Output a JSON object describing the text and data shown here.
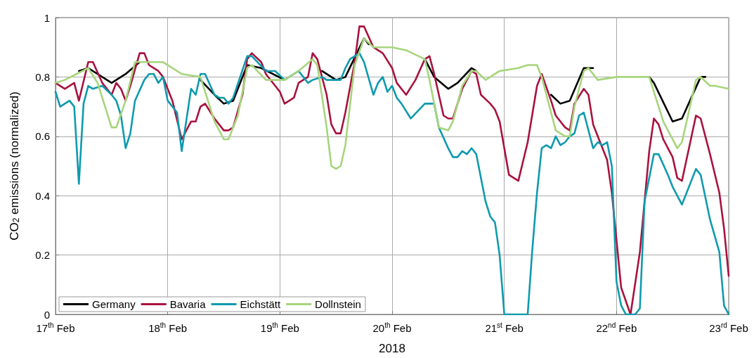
{
  "chart_data": {
    "type": "line",
    "xlabel": "2018",
    "ylabel": "CO$_{2}$ emissions (normalized)",
    "xlim": [
      "2018-02-17",
      "2018-02-23"
    ],
    "xticks": [
      {
        "value": "2018-02-17",
        "label": "17$^{th}$ Feb"
      },
      {
        "value": "2018-02-18",
        "label": "18$^{th}$ Feb"
      },
      {
        "value": "2018-02-19",
        "label": "19$^{th}$ Feb"
      },
      {
        "value": "2018-02-20",
        "label": "20$^{th}$ Feb"
      },
      {
        "value": "2018-02-21",
        "label": "21$^{st}$ Feb"
      },
      {
        "value": "2018-02-22",
        "label": "22$^{nd}$ Feb"
      },
      {
        "value": "2018-02-23",
        "label": "23$^{rd}$ Feb"
      }
    ],
    "ylim": [
      0,
      1
    ],
    "yticks": [
      0,
      0.2,
      0.4,
      0.6,
      0.8,
      1
    ],
    "grid": true,
    "legend": "bottom left",
    "marker": "none",
    "line_style": "solid",
    "series": [
      {
        "name": "Germany",
        "color": "#000000",
        "x": [
          "2018-02-17T05:00",
          "2018-02-17T07:00",
          "2018-02-17T12:00",
          "2018-02-17T15:00",
          "2018-02-17T18:00",
          "2018-02-18T00:00",
          "2018-02-18T07:00",
          "2018-02-18T10:00",
          "2018-02-18T12:00",
          "2018-02-18T14:00",
          "2018-02-18T17:00",
          "2018-02-18T20:00",
          "2018-02-19T01:00",
          "2018-02-19T04:00",
          "2018-02-19T07:00",
          "2018-02-19T09:00",
          "2018-02-19T12:00",
          "2018-02-19T14:00",
          "2018-02-19T18:00",
          "2018-02-19T19:00",
          "2018-02-20T00:00",
          "2018-02-20T07:00",
          "2018-02-20T09:00",
          "2018-02-20T12:00",
          "2018-02-20T14:00",
          "2018-02-20T17:00",
          "2018-02-20T18:00",
          "2018-02-21T00:00",
          "2018-02-21T08:00",
          "2018-02-21T10:00",
          "2018-02-21T12:00",
          "2018-02-21T14:00",
          "2018-02-21T17:00",
          "2018-02-21T19:00",
          "2018-02-22T00:00",
          "2018-02-22T07:00",
          "2018-02-22T08:00",
          "2018-02-22T12:00",
          "2018-02-22T14:00",
          "2018-02-22T18:00",
          "2018-02-22T19:00"
        ],
        "values": [
          0.82,
          0.83,
          0.78,
          0.81,
          0.85,
          null,
          0.79,
          0.74,
          0.71,
          0.72,
          0.84,
          0.83,
          0.79,
          null,
          null,
          0.82,
          0.79,
          0.8,
          0.93,
          0.91,
          null,
          0.86,
          0.8,
          0.76,
          0.78,
          0.83,
          0.82,
          null,
          null,
          0.74,
          0.71,
          0.72,
          0.83,
          0.83,
          null,
          0.8,
          0.78,
          0.65,
          0.66,
          0.8,
          0.8
        ]
      },
      {
        "name": "Bavaria",
        "color": "#a8123e",
        "x": [
          "2018-02-17T00:00",
          "2018-02-17T02:00",
          "2018-02-17T04:00",
          "2018-02-17T05:00",
          "2018-02-17T07:00",
          "2018-02-17T08:00",
          "2018-02-17T10:00",
          "2018-02-17T12:00",
          "2018-02-17T13:00",
          "2018-02-17T14:00",
          "2018-02-17T15:00",
          "2018-02-17T16:00",
          "2018-02-17T18:00",
          "2018-02-17T19:00",
          "2018-02-17T20:00",
          "2018-02-17T22:00",
          "2018-02-17T23:00",
          "2018-02-18T01:00",
          "2018-02-18T03:00",
          "2018-02-18T05:00",
          "2018-02-18T06:00",
          "2018-02-18T07:00",
          "2018-02-18T08:00",
          "2018-02-18T10:00",
          "2018-02-18T12:00",
          "2018-02-18T13:00",
          "2018-02-18T14:00",
          "2018-02-18T16:00",
          "2018-02-18T17:00",
          "2018-02-18T18:00",
          "2018-02-18T20:00",
          "2018-02-18T21:00",
          "2018-02-19T00:00",
          "2018-02-19T01:00",
          "2018-02-19T03:00",
          "2018-02-19T04:00",
          "2018-02-19T06:00",
          "2018-02-19T07:00",
          "2018-02-19T08:00",
          "2018-02-19T10:00",
          "2018-02-19T11:00",
          "2018-02-19T12:00",
          "2018-02-19T13:00",
          "2018-02-19T14:00",
          "2018-02-19T16:00",
          "2018-02-19T17:00",
          "2018-02-19T18:00",
          "2018-02-19T20:00",
          "2018-02-19T22:00",
          "2018-02-20T00:00",
          "2018-02-20T01:00",
          "2018-02-20T03:00",
          "2018-02-20T05:00",
          "2018-02-20T07:00",
          "2018-02-20T08:00",
          "2018-02-20T09:00",
          "2018-02-20T11:00",
          "2018-02-20T12:00",
          "2018-02-20T13:00",
          "2018-02-20T15:00",
          "2018-02-20T17:00",
          "2018-02-20T18:00",
          "2018-02-20T19:00",
          "2018-02-20T21:00",
          "2018-02-20T22:00",
          "2018-02-20T23:00",
          "2018-02-21T00:00",
          "2018-02-21T01:00",
          "2018-02-21T03:00",
          "2018-02-21T05:00",
          "2018-02-21T07:00",
          "2018-02-21T08:00",
          "2018-02-21T10:00",
          "2018-02-21T11:00",
          "2018-02-21T13:00",
          "2018-02-21T14:00",
          "2018-02-21T15:00",
          "2018-02-21T17:00",
          "2018-02-21T18:00",
          "2018-02-21T19:00",
          "2018-02-21T22:00",
          "2018-02-21T23:00",
          "2018-02-22T01:00",
          "2018-02-22T03:00",
          "2018-02-22T05:00",
          "2018-02-22T07:00",
          "2018-02-22T08:00",
          "2018-02-22T09:00",
          "2018-02-22T10:00",
          "2018-02-22T12:00",
          "2018-02-22T13:00",
          "2018-02-22T14:00",
          "2018-02-22T17:00",
          "2018-02-22T18:00",
          "2018-02-22T20:00",
          "2018-02-22T22:00",
          "2018-02-22T23:00",
          "2018-02-23T00:00"
        ],
        "values": [
          0.78,
          0.76,
          0.78,
          0.72,
          0.85,
          0.85,
          0.78,
          0.74,
          0.78,
          0.76,
          0.72,
          0.77,
          0.88,
          0.88,
          0.84,
          0.82,
          0.8,
          0.72,
          0.59,
          0.65,
          0.65,
          0.7,
          0.71,
          0.66,
          0.62,
          0.62,
          0.63,
          0.74,
          0.86,
          0.88,
          0.85,
          0.81,
          0.75,
          0.71,
          0.73,
          0.78,
          0.8,
          0.88,
          0.86,
          0.74,
          0.64,
          0.61,
          0.61,
          0.68,
          0.85,
          0.97,
          0.97,
          0.9,
          0.88,
          0.83,
          0.78,
          0.74,
          0.79,
          0.86,
          0.87,
          0.81,
          0.67,
          0.66,
          0.66,
          0.76,
          0.82,
          0.81,
          0.74,
          0.71,
          0.69,
          0.65,
          0.56,
          0.47,
          0.45,
          0.58,
          0.77,
          0.81,
          0.72,
          0.67,
          0.63,
          0.62,
          0.71,
          0.76,
          0.74,
          0.64,
          0.52,
          0.41,
          0.09,
          0,
          0.21,
          0.55,
          0.66,
          0.64,
          0.59,
          0.53,
          0.46,
          0.45,
          0.67,
          0.66,
          0.54,
          0.41,
          0.29,
          0.13
        ]
      },
      {
        "name": "Eichstätt",
        "color": "#0f9aae",
        "x": [
          "2018-02-17T00:00",
          "2018-02-17T01:00",
          "2018-02-17T03:00",
          "2018-02-17T04:00",
          "2018-02-17T05:00",
          "2018-02-17T06:00",
          "2018-02-17T07:00",
          "2018-02-17T08:00",
          "2018-02-17T10:00",
          "2018-02-17T12:00",
          "2018-02-17T13:00",
          "2018-02-17T14:00",
          "2018-02-17T15:00",
          "2018-02-17T16:00",
          "2018-02-17T17:00",
          "2018-02-17T19:00",
          "2018-02-17T20:00",
          "2018-02-17T21:00",
          "2018-02-17T22:00",
          "2018-02-17T23:00",
          "2018-02-18T00:00",
          "2018-02-18T02:00",
          "2018-02-18T03:00",
          "2018-02-18T05:00",
          "2018-02-18T06:00",
          "2018-02-18T07:00",
          "2018-02-18T08:00",
          "2018-02-18T10:00",
          "2018-02-18T11:00",
          "2018-02-18T12:00",
          "2018-02-18T13:00",
          "2018-02-18T14:00",
          "2018-02-18T17:00",
          "2018-02-18T18:00",
          "2018-02-18T21:00",
          "2018-02-18T23:00",
          "2018-02-19T01:00",
          "2018-02-19T03:00",
          "2018-02-19T04:00",
          "2018-02-19T06:00",
          "2018-02-19T07:00",
          "2018-02-19T09:00",
          "2018-02-19T10:00",
          "2018-02-19T12:00",
          "2018-02-19T13:00",
          "2018-02-19T14:00",
          "2018-02-19T15:00",
          "2018-02-19T17:00",
          "2018-02-19T18:00",
          "2018-02-19T20:00",
          "2018-02-19T21:00",
          "2018-02-19T22:00",
          "2018-02-19T23:00",
          "2018-02-20T00:00",
          "2018-02-20T01:00",
          "2018-02-20T02:00",
          "2018-02-20T04:00",
          "2018-02-20T07:00",
          "2018-02-20T09:00",
          "2018-02-20T10:00",
          "2018-02-20T12:00",
          "2018-02-20T13:00",
          "2018-02-20T14:00",
          "2018-02-20T15:00",
          "2018-02-20T16:00",
          "2018-02-20T17:00",
          "2018-02-20T18:00",
          "2018-02-20T20:00",
          "2018-02-20T21:00",
          "2018-02-20T22:00",
          "2018-02-20T23:00",
          "2018-02-21T00:00",
          "2018-02-21T05:00",
          "2018-02-21T06:00",
          "2018-02-21T07:00",
          "2018-02-21T08:00",
          "2018-02-21T09:00",
          "2018-02-21T10:00",
          "2018-02-21T11:00",
          "2018-02-21T12:00",
          "2018-02-21T13:00",
          "2018-02-21T14:00",
          "2018-02-21T15:00",
          "2018-02-21T16:00",
          "2018-02-21T17:00",
          "2018-02-21T19:00",
          "2018-02-21T20:00",
          "2018-02-21T21:00",
          "2018-02-21T22:00",
          "2018-02-21T23:00",
          "2018-02-22T00:00",
          "2018-02-22T01:00",
          "2018-02-22T02:00",
          "2018-02-22T04:00",
          "2018-02-22T05:00",
          "2018-02-22T06:00",
          "2018-02-22T08:00",
          "2018-02-22T09:00",
          "2018-02-22T11:00",
          "2018-02-22T12:00",
          "2018-02-22T14:00",
          "2018-02-22T17:00",
          "2018-02-22T18:00",
          "2018-02-22T20:00",
          "2018-02-22T22:00",
          "2018-02-22T23:00",
          "2018-02-23T00:00"
        ],
        "values": [
          0.75,
          0.7,
          0.72,
          0.7,
          0.44,
          0.71,
          0.77,
          0.76,
          0.77,
          0.74,
          0.72,
          0.67,
          0.56,
          0.61,
          0.72,
          0.79,
          0.81,
          0.81,
          0.78,
          0.8,
          0.72,
          0.68,
          0.55,
          0.76,
          0.74,
          0.81,
          0.81,
          0.74,
          0.73,
          0.73,
          0.71,
          0.73,
          0.87,
          0.87,
          0.82,
          0.82,
          0.79,
          0.81,
          0.82,
          0.78,
          0.79,
          0.8,
          0.79,
          0.79,
          0.79,
          0.83,
          0.86,
          0.88,
          0.85,
          0.74,
          0.78,
          0.8,
          0.75,
          0.77,
          0.73,
          0.71,
          0.66,
          0.71,
          0.71,
          0.63,
          0.56,
          0.53,
          0.53,
          0.55,
          0.54,
          0.56,
          0.54,
          0.38,
          0.33,
          0.31,
          0.2,
          0,
          0,
          0.22,
          0.41,
          0.56,
          0.57,
          0.56,
          0.6,
          0.57,
          0.58,
          0.6,
          0.61,
          0.67,
          0.68,
          0.56,
          0.58,
          0.57,
          0.58,
          0.5,
          0.11,
          0.03,
          0,
          0,
          0.02,
          0.38,
          0.54,
          0.54,
          0.47,
          0.43,
          0.37,
          0.49,
          0.47,
          0.32,
          0.21,
          0.03,
          0
        ]
      },
      {
        "name": "Dollnstein",
        "color": "#a6d57c",
        "x": [
          "2018-02-17T00:00",
          "2018-02-17T02:00",
          "2018-02-17T07:00",
          "2018-02-17T09:00",
          "2018-02-17T12:00",
          "2018-02-17T13:00",
          "2018-02-17T15:00",
          "2018-02-17T17:00",
          "2018-02-17T19:00",
          "2018-02-17T23:00",
          "2018-02-18T03:00",
          "2018-02-18T07:00",
          "2018-02-18T10:00",
          "2018-02-18T12:00",
          "2018-02-18T13:00",
          "2018-02-18T15:00",
          "2018-02-18T17:00",
          "2018-02-18T18:00",
          "2018-02-18T21:00",
          "2018-02-18T23:00",
          "2018-02-19T01:00",
          "2018-02-19T04:00",
          "2018-02-19T07:00",
          "2018-02-19T08:00",
          "2018-02-19T10:00",
          "2018-02-19T11:00",
          "2018-02-19T12:00",
          "2018-02-19T13:00",
          "2018-02-19T14:00",
          "2018-02-19T16:00",
          "2018-02-19T18:00",
          "2018-02-19T20:00",
          "2018-02-19T22:00",
          "2018-02-20T00:00",
          "2018-02-20T03:00",
          "2018-02-20T07:00",
          "2018-02-20T08:00",
          "2018-02-20T10:00",
          "2018-02-20T12:00",
          "2018-02-20T13:00",
          "2018-02-20T15:00",
          "2018-02-20T17:00",
          "2018-02-20T18:00",
          "2018-02-20T20:00",
          "2018-02-20T23:00",
          "2018-02-21T03:00",
          "2018-02-21T05:00",
          "2018-02-21T07:00",
          "2018-02-21T08:00",
          "2018-02-21T10:00",
          "2018-02-21T11:00",
          "2018-02-21T13:00",
          "2018-02-21T14:00",
          "2018-02-21T15:00",
          "2018-02-21T17:00",
          "2018-02-21T18:00",
          "2018-02-21T20:00",
          "2018-02-22T00:00",
          "2018-02-22T03:00",
          "2018-02-22T07:00",
          "2018-02-22T10:00",
          "2018-02-22T13:00",
          "2018-02-22T14:00",
          "2018-02-22T17:00",
          "2018-02-22T18:00",
          "2018-02-22T20:00",
          "2018-02-22T21:00",
          "2018-02-23T00:00"
        ],
        "values": [
          0.78,
          0.79,
          0.83,
          0.78,
          0.63,
          0.63,
          0.72,
          0.85,
          0.85,
          0.85,
          0.81,
          0.8,
          0.65,
          0.59,
          0.59,
          0.67,
          0.83,
          0.84,
          0.79,
          0.79,
          0.79,
          0.82,
          0.86,
          0.84,
          0.63,
          0.5,
          0.49,
          0.5,
          0.57,
          0.84,
          0.93,
          0.9,
          0.9,
          0.9,
          0.89,
          0.86,
          0.79,
          0.63,
          0.62,
          0.65,
          0.77,
          0.82,
          0.82,
          0.79,
          0.82,
          0.83,
          0.84,
          0.84,
          0.8,
          0.68,
          0.62,
          0.6,
          0.6,
          0.7,
          0.82,
          0.83,
          0.79,
          0.8,
          0.8,
          0.8,
          0.65,
          0.56,
          0.58,
          0.79,
          0.8,
          0.77,
          0.77,
          0.76
        ]
      }
    ]
  }
}
